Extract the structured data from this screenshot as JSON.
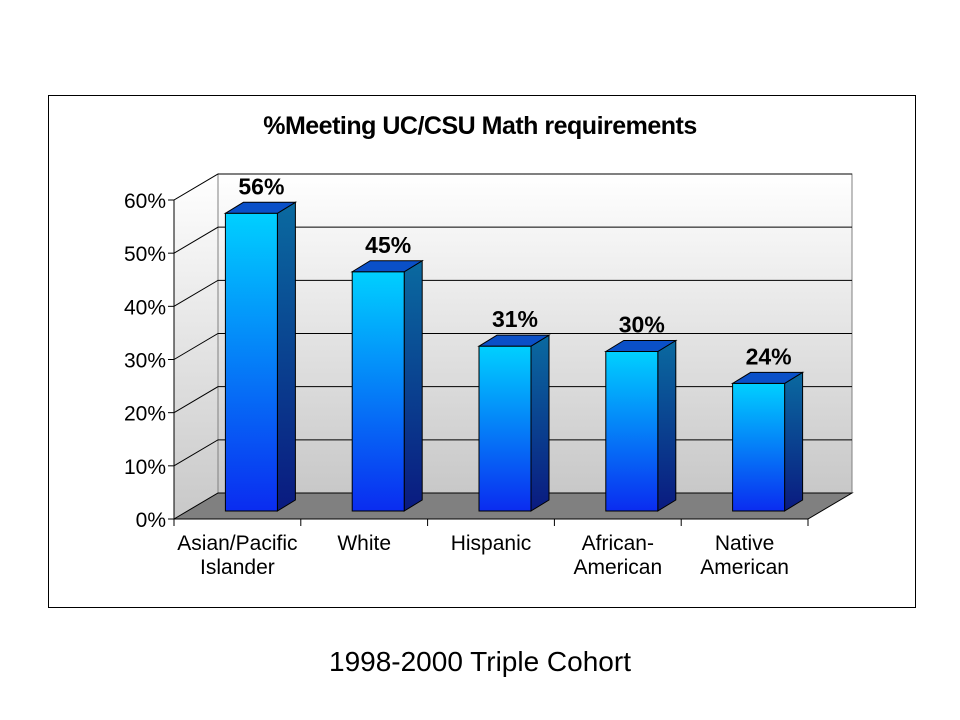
{
  "chart_data": {
    "type": "bar",
    "title": "%Meeting UC/CSU Math requirements",
    "categories": [
      [
        "Asian/Pacific",
        "Islander"
      ],
      [
        "White"
      ],
      [
        "Hispanic"
      ],
      [
        "African-",
        "American"
      ],
      [
        "Native",
        "American"
      ]
    ],
    "values": [
      56,
      45,
      31,
      30,
      24
    ],
    "value_labels": [
      "56%",
      "45%",
      "31%",
      "30%",
      "24%"
    ],
    "ylim": [
      0,
      60
    ],
    "yticks": [
      0,
      10,
      20,
      30,
      40,
      50,
      60
    ],
    "ytick_labels": [
      "0%",
      "10%",
      "20%",
      "30%",
      "40%",
      "50%",
      "60%"
    ],
    "grid": true,
    "legend": "none",
    "bar_colors": {
      "top": "#00d0ff",
      "bottom": "#0a2cf0",
      "side": "#0a4a8a",
      "cap": "#0a50c8"
    },
    "floor_color": "#808080",
    "wall_colors": {
      "top": "#ffffff",
      "bottom": "#c8c8c8"
    }
  },
  "caption": "1998-2000 Triple Cohort"
}
